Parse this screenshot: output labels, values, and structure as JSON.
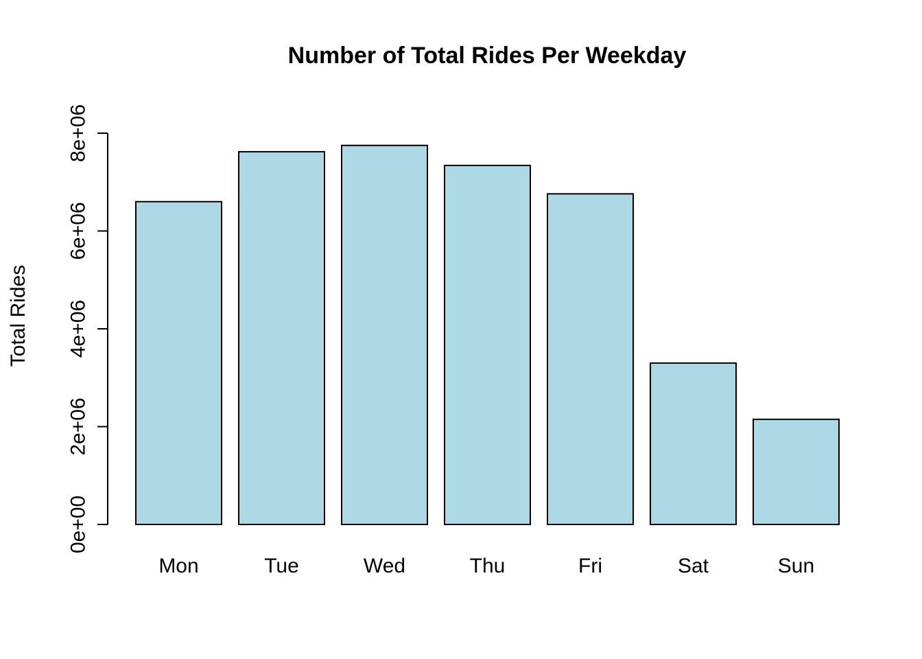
{
  "chart_data": {
    "type": "bar",
    "title": "Number of Total Rides Per Weekday",
    "xlabel": "",
    "ylabel": "Total Rides",
    "categories": [
      "Mon",
      "Tue",
      "Wed",
      "Thu",
      "Fri",
      "Sat",
      "Sun"
    ],
    "values": [
      6600000,
      7620000,
      7750000,
      7340000,
      6760000,
      3300000,
      2150000
    ],
    "ylim": [
      0,
      8000000
    ],
    "yticks": [
      0,
      2000000,
      4000000,
      6000000,
      8000000
    ],
    "ytick_labels": [
      "0e+00",
      "2e+06",
      "4e+06",
      "6e+06",
      "8e+06"
    ],
    "bar_color": "#add8e6",
    "bar_border_color": "#000000",
    "grid": false,
    "legend": "none"
  }
}
